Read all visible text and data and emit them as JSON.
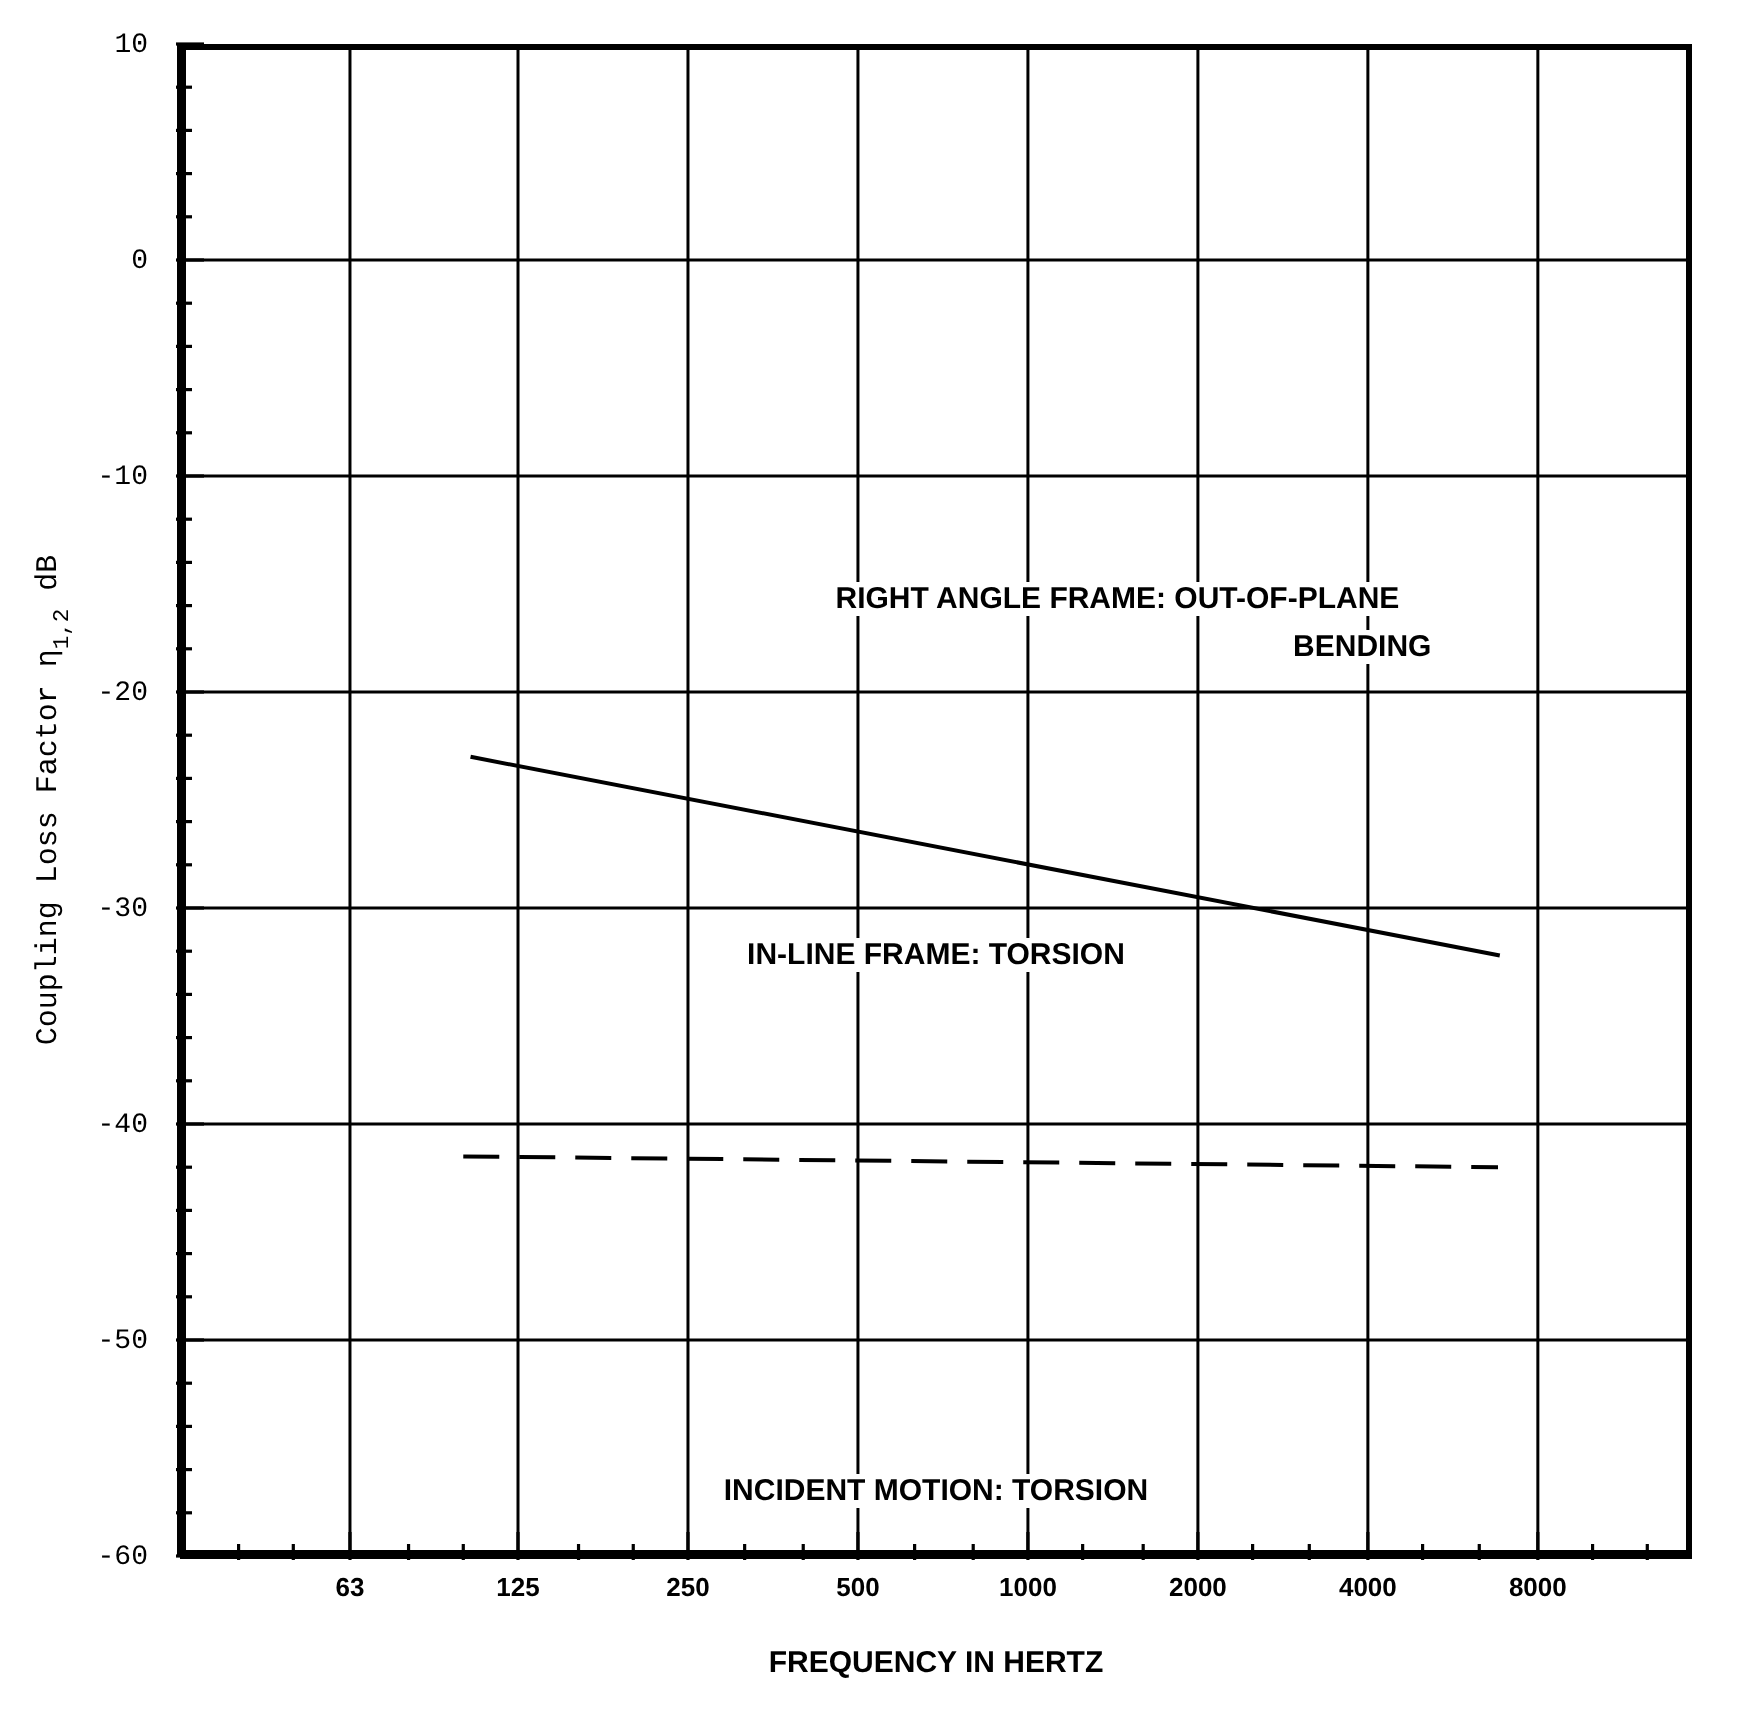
{
  "chart_data": {
    "type": "line",
    "xlabel": "FREQUENCY IN HERTZ",
    "ylabel": "Coupling Loss Factor η$_{1,2}$ dB",
    "log": "x",
    "xlim": [
      31.5,
      15000
    ],
    "xticks": [
      {
        "value": 40,
        "label": null
      },
      {
        "value": 50,
        "label": null
      },
      63,
      {
        "value": 80,
        "label": null
      },
      {
        "value": 100,
        "label": null
      },
      125,
      {
        "value": 160,
        "label": null
      },
      {
        "value": 200,
        "label": null
      },
      250,
      {
        "value": 315,
        "label": null
      },
      {
        "value": 400,
        "label": null
      },
      500,
      {
        "value": 630,
        "label": null
      },
      {
        "value": 800,
        "label": null
      },
      1000,
      {
        "value": 1250,
        "label": null
      },
      {
        "value": 1600,
        "label": null
      },
      2000,
      {
        "value": 2500,
        "label": null
      },
      {
        "value": 3150,
        "label": null
      },
      4000,
      {
        "value": 5000,
        "label": null
      },
      {
        "value": 6300,
        "label": null
      },
      8000,
      {
        "value": 10000,
        "label": null
      },
      {
        "value": 12500,
        "label": null
      }
    ],
    "ylim": [
      -60,
      10
    ],
    "yticks": [
      -60,
      {
        "value": -58,
        "label": null
      },
      {
        "value": -56,
        "label": null
      },
      {
        "value": -54,
        "label": null
      },
      {
        "value": -52,
        "label": null
      },
      -50,
      {
        "value": -48,
        "label": null
      },
      {
        "value": -46,
        "label": null
      },
      {
        "value": -44,
        "label": null
      },
      {
        "value": -42,
        "label": null
      },
      -40,
      {
        "value": -38,
        "label": null
      },
      {
        "value": -36,
        "label": null
      },
      {
        "value": -34,
        "label": null
      },
      {
        "value": -32,
        "label": null
      },
      -30,
      {
        "value": -28,
        "label": null
      },
      {
        "value": -26,
        "label": null
      },
      {
        "value": -24,
        "label": null
      },
      {
        "value": -22,
        "label": null
      },
      -20,
      {
        "value": -18,
        "label": null
      },
      {
        "value": -16,
        "label": null
      },
      {
        "value": -14,
        "label": null
      },
      {
        "value": -12,
        "label": null
      },
      -10,
      {
        "value": -8,
        "label": null
      },
      {
        "value": -6,
        "label": null
      },
      {
        "value": -4,
        "label": null
      },
      {
        "value": -2,
        "label": null
      },
      0,
      {
        "value": 2,
        "label": null
      },
      {
        "value": 4,
        "label": null
      },
      {
        "value": 6,
        "label": null
      },
      {
        "value": 8,
        "label": null
      },
      10
    ],
    "grid": true,
    "marker": "none",
    "series": [
      {
        "x": [
          103,
          6850
        ],
        "values": [
          -23,
          -32.2
        ],
        "color": "#000000",
        "line_style": "solid"
      },
      {
        "x": [
          100,
          6800
        ],
        "values": [
          -41.5,
          -42
        ],
        "color": "#000000",
        "line_style": "dashed"
      }
    ],
    "annotations": [
      "RIGHT ANGLE FRAME: OUT-OF-PLANE\nBENDING",
      "IN-LINE FRAME: TORSION",
      "INCIDENT MOTION: TORSION"
    ]
  }
}
